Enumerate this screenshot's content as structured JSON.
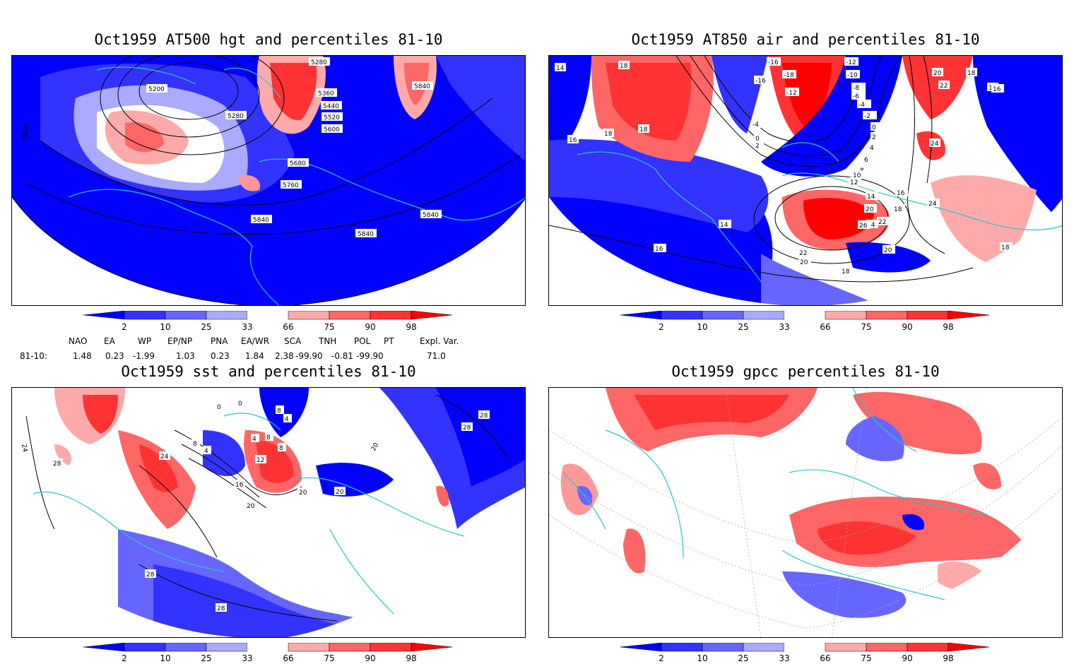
{
  "panels": [
    {
      "title": "Oct1959 AT500 hgt and percentiles 81-10",
      "contour_labels": [
        "5280",
        "5200",
        "5360",
        "5440",
        "5520",
        "5600",
        "5280",
        "5840",
        "5840",
        "5680",
        "5760",
        "5840",
        "5840",
        "5840"
      ]
    },
    {
      "title": "Oct1959 AT850 air and percentiles 81-10",
      "contour_labels": [
        "14",
        "18",
        "-16",
        "-12",
        "-10",
        "-18",
        "-12",
        "-8",
        "-6",
        "-4",
        "-2",
        "20",
        "22",
        "18",
        "16",
        "-16",
        "18",
        "18",
        "-4",
        "0",
        "2",
        "24",
        "16",
        "0",
        "2",
        "4",
        "6",
        "8",
        "10",
        "12",
        "14",
        "20",
        "24",
        "16",
        "18",
        "22",
        "26",
        "20",
        "22",
        "20",
        "18",
        "14",
        "16",
        "18",
        "24",
        "16"
      ]
    },
    {
      "title": "Oct1959 sst and percentiles 81-10",
      "contour_labels": [
        "0",
        "0",
        "8",
        "4",
        "28",
        "28",
        "24",
        "28",
        "8",
        "4",
        "4",
        "8",
        "8",
        "24",
        "12",
        "16",
        "20",
        "20",
        "20",
        "20",
        "28",
        "28"
      ]
    },
    {
      "title": "Oct1959 gpcc percentiles 81-10",
      "contour_labels": []
    }
  ],
  "colorbar": {
    "labels": [
      "2",
      "10",
      "25",
      "33",
      "66",
      "75",
      "90",
      "98"
    ],
    "colors": [
      "#0000ff",
      "#3333ff",
      "#6666ff",
      "#aaaaff",
      "#ffffff",
      "#ffaaaa",
      "#ff6666",
      "#ff3333",
      "#ff0000"
    ]
  },
  "indices": {
    "headers": [
      "NAO",
      "EA",
      "WP",
      "EP/NP",
      "PNA",
      "EA/WR",
      "SCA",
      "TNH",
      "POL",
      "PT",
      "Expl. Var."
    ],
    "row_label": "81-10:",
    "values": [
      "1.48",
      "0.23",
      "-1.99",
      "1.03",
      "0.23",
      "1.84",
      "2.38",
      "-99.90",
      "-0.81",
      "-99.90",
      "71.0"
    ]
  }
}
